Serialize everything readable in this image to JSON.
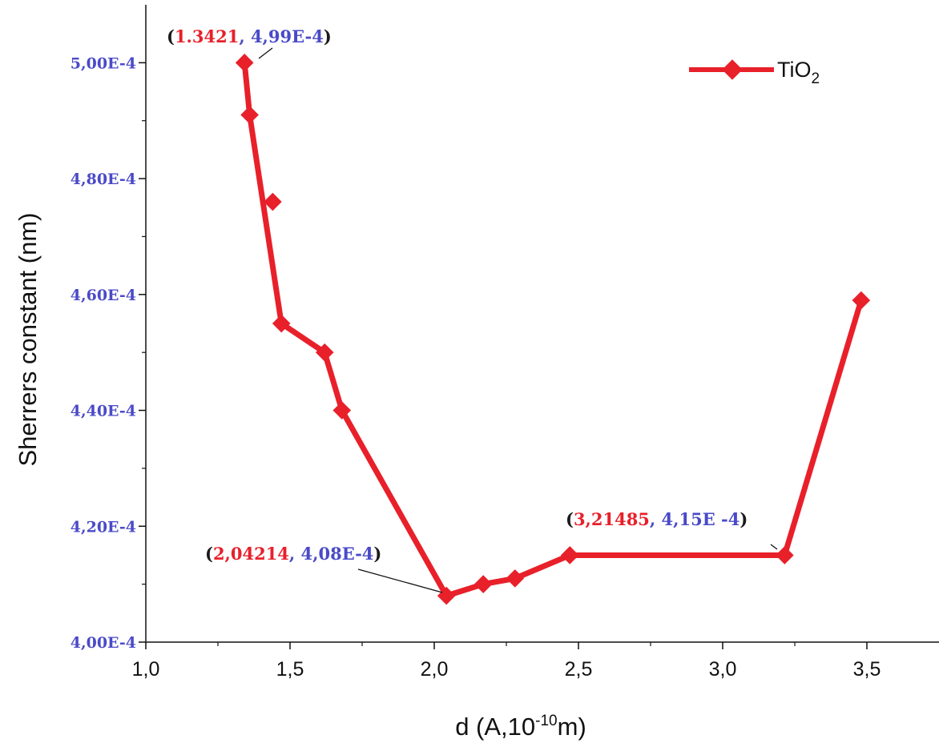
{
  "chart_data": {
    "type": "line",
    "xlabel": {
      "pre": "d (A,10",
      "sup": "-10",
      "post": "m)"
    },
    "ylabel": "Sherrers constant (nm)",
    "xlim": [
      1.0,
      3.75
    ],
    "ylim": [
      0.0004,
      0.00051
    ],
    "x_ticks": [
      1.0,
      1.5,
      2.0,
      2.5,
      3.0,
      3.5
    ],
    "x_tick_labels": [
      "1,0",
      "1,5",
      "2,0",
      "2,5",
      "3,0",
      "3,5"
    ],
    "y_ticks": [
      0.0004,
      0.00042,
      0.00044,
      0.00046,
      0.00048,
      0.0005
    ],
    "y_tick_labels": [
      "4,00E-4",
      "4,20E-4",
      "4,40E-4",
      "4,60E-4",
      "4,80E-4",
      "5,00E-4"
    ],
    "grid": false,
    "legend_position": "top-right",
    "series": [
      {
        "name": "TiO",
        "name_sub": "2",
        "color": "#e8202a",
        "marker": "diamond",
        "x": [
          1.3421,
          1.36,
          1.44,
          1.47,
          1.62,
          1.68,
          2.04214,
          2.17,
          2.28,
          2.47,
          3.21485,
          3.48
        ],
        "y": [
          0.0005,
          0.000491,
          0.000476,
          0.000455,
          0.00045,
          0.00044,
          0.000408,
          0.00041,
          0.000411,
          0.000415,
          0.000415,
          0.000459
        ]
      }
    ],
    "annotations": [
      {
        "x_text": "1.3421",
        "y_text": "4,99E-4",
        "open": "(",
        "sep": ", ",
        "close": ")"
      },
      {
        "x_text": "2,04214",
        "y_text": "4,08E-4",
        "open": "(",
        "sep": ", ",
        "close": ")"
      },
      {
        "x_text": "3,21485",
        "y_text": "4,15E -4",
        "open": "(",
        "sep": ", ",
        "close": ")"
      }
    ],
    "annotation_colors": {
      "x": "#e8202a",
      "y": "#4a4ac8",
      "paren": "#1a1a1a"
    }
  }
}
